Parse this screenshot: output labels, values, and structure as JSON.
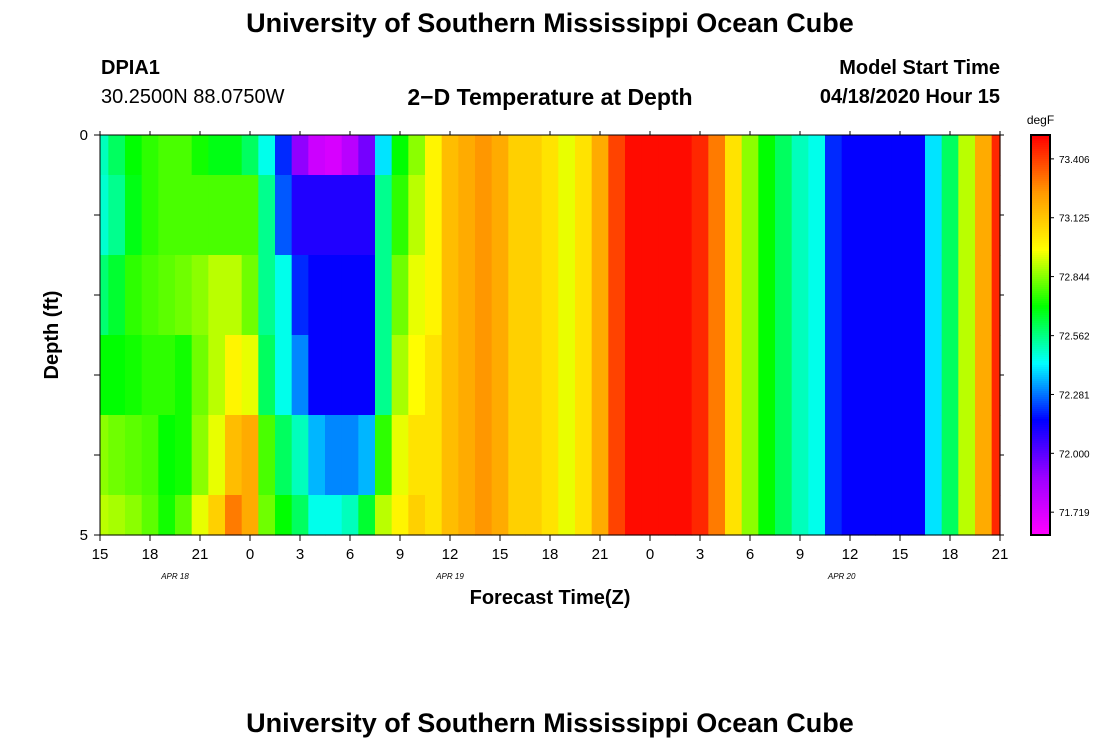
{
  "header": {
    "title": "University of Southern Mississippi Ocean Cube",
    "station": "DPIA1",
    "coords": "30.2500N 88.0750W",
    "subtitle": "2−D Temperature at Depth",
    "model_start_label": "Model Start Time",
    "model_start_value": "04/18/2020 Hour 15"
  },
  "footer": {
    "title": "University of Southern Mississippi Ocean Cube"
  },
  "colors": {
    "scale": [
      "#ff00ff",
      "#9b00ff",
      "#0000ff",
      "#00ffff",
      "#00ff00",
      "#ffff00",
      "#ff9900",
      "#ff0000"
    ],
    "background": "#ffffff"
  },
  "chart_data": {
    "type": "heatmap",
    "xlabel": "Forecast Time(Z)",
    "ylabel": "Depth (ft)",
    "x_hours_since_start": [
      0,
      1,
      2,
      3,
      4,
      5,
      6,
      7,
      8,
      9,
      10,
      11,
      12,
      13,
      14,
      15,
      16,
      17,
      18,
      19,
      20,
      21,
      22,
      23,
      24,
      25,
      26,
      27,
      28,
      29,
      30,
      31,
      32,
      33,
      34,
      35,
      36,
      37,
      38,
      39,
      40,
      41,
      42,
      43,
      44,
      45,
      46,
      47,
      48,
      49,
      50,
      51,
      52,
      53,
      54
    ],
    "x_tick_labels": [
      "15",
      "18",
      "21",
      "0",
      "3",
      "6",
      "9",
      "12",
      "15",
      "18",
      "21",
      "0",
      "3",
      "6",
      "9",
      "12",
      "15",
      "18",
      "21"
    ],
    "x_tick_hours": [
      0,
      3,
      6,
      9,
      12,
      15,
      18,
      21,
      24,
      27,
      30,
      33,
      36,
      39,
      42,
      45,
      48,
      51,
      54
    ],
    "date_labels": [
      {
        "label": "APR 18",
        "hour": 4.5
      },
      {
        "label": "APR 19",
        "hour": 21
      },
      {
        "label": "APR 20",
        "hour": 44.5
      }
    ],
    "y_depth_ft": [
      0,
      1,
      2,
      3,
      4,
      5
    ],
    "y_tick_labels": [
      "0",
      "5"
    ],
    "ylim": [
      0,
      5
    ],
    "colorbar": {
      "unit": "degF",
      "labels": [
        "73.406",
        "73.125",
        "72.844",
        "72.562",
        "72.281",
        "72.000",
        "71.719"
      ],
      "values": [
        73.406,
        73.125,
        72.844,
        72.562,
        72.281,
        72.0,
        71.719
      ],
      "min": 71.61,
      "max": 73.52
    },
    "rows": [
      {
        "depth_range": [
          0,
          0.5
        ],
        "values": [
          72.5,
          72.6,
          72.7,
          72.75,
          72.78,
          72.78,
          72.72,
          72.68,
          72.68,
          72.6,
          72.45,
          72.2,
          71.9,
          71.75,
          71.72,
          71.8,
          71.95,
          72.4,
          72.7,
          72.85,
          73.0,
          73.15,
          73.2,
          73.25,
          73.2,
          73.1,
          73.1,
          73.05,
          72.95,
          73.05,
          73.2,
          73.4,
          73.5,
          73.5,
          73.5,
          73.5,
          73.45,
          73.3,
          73.05,
          72.85,
          72.7,
          72.6,
          72.5,
          72.45,
          72.2,
          72.15,
          72.15,
          72.15,
          72.15,
          72.15,
          72.4,
          72.6,
          72.9,
          73.2,
          73.45
        ]
      },
      {
        "depth_range": [
          0.5,
          1.5
        ],
        "values": [
          72.48,
          72.55,
          72.68,
          72.75,
          72.78,
          72.78,
          72.78,
          72.78,
          72.78,
          72.78,
          72.55,
          72.25,
          72.1,
          72.1,
          72.1,
          72.1,
          72.1,
          72.55,
          72.75,
          72.9,
          73.0,
          73.15,
          73.2,
          73.25,
          73.2,
          73.1,
          73.1,
          73.05,
          72.95,
          73.05,
          73.2,
          73.4,
          73.5,
          73.5,
          73.5,
          73.5,
          73.45,
          73.3,
          73.05,
          72.85,
          72.7,
          72.6,
          72.5,
          72.45,
          72.2,
          72.15,
          72.15,
          72.15,
          72.15,
          72.15,
          72.4,
          72.6,
          72.9,
          73.2,
          73.45
        ]
      },
      {
        "depth_range": [
          1.5,
          2.5
        ],
        "values": [
          72.58,
          72.65,
          72.75,
          72.78,
          72.8,
          72.82,
          72.85,
          72.9,
          72.9,
          72.82,
          72.55,
          72.45,
          72.2,
          72.15,
          72.15,
          72.15,
          72.15,
          72.55,
          72.82,
          72.95,
          73.0,
          73.15,
          73.2,
          73.25,
          73.2,
          73.1,
          73.1,
          73.05,
          72.95,
          73.05,
          73.2,
          73.4,
          73.5,
          73.5,
          73.5,
          73.5,
          73.45,
          73.3,
          73.05,
          72.85,
          72.7,
          72.6,
          72.5,
          72.45,
          72.2,
          72.15,
          72.15,
          72.15,
          72.15,
          72.15,
          72.4,
          72.6,
          72.9,
          73.2,
          73.45
        ]
      },
      {
        "depth_range": [
          2.5,
          3.5
        ],
        "values": [
          72.7,
          72.7,
          72.72,
          72.75,
          72.75,
          72.72,
          72.82,
          72.9,
          73.0,
          72.95,
          72.6,
          72.45,
          72.3,
          72.15,
          72.15,
          72.15,
          72.15,
          72.55,
          72.88,
          72.98,
          73.05,
          73.15,
          73.2,
          73.25,
          73.2,
          73.1,
          73.1,
          73.05,
          72.95,
          73.05,
          73.2,
          73.4,
          73.5,
          73.5,
          73.5,
          73.5,
          73.45,
          73.3,
          73.05,
          72.85,
          72.7,
          72.6,
          72.5,
          72.45,
          72.2,
          72.15,
          72.15,
          72.15,
          72.15,
          72.15,
          72.4,
          72.6,
          72.9,
          73.2,
          73.45
        ]
      },
      {
        "depth_range": [
          3.5,
          4.5
        ],
        "values": [
          72.85,
          72.82,
          72.8,
          72.78,
          72.7,
          72.72,
          72.85,
          72.95,
          73.15,
          73.2,
          72.78,
          72.6,
          72.5,
          72.35,
          72.3,
          72.3,
          72.35,
          72.75,
          72.95,
          73.05,
          73.05,
          73.15,
          73.2,
          73.25,
          73.2,
          73.1,
          73.1,
          73.05,
          72.95,
          73.05,
          73.2,
          73.4,
          73.5,
          73.5,
          73.5,
          73.5,
          73.45,
          73.3,
          73.05,
          72.85,
          72.7,
          72.6,
          72.5,
          72.45,
          72.2,
          72.15,
          72.15,
          72.15,
          72.15,
          72.15,
          72.4,
          72.6,
          72.9,
          73.2,
          73.45
        ]
      },
      {
        "depth_range": [
          4.5,
          5
        ],
        "values": [
          72.9,
          72.88,
          72.85,
          72.8,
          72.72,
          72.8,
          72.95,
          73.1,
          73.3,
          73.2,
          72.82,
          72.7,
          72.6,
          72.45,
          72.45,
          72.5,
          72.65,
          72.9,
          73.0,
          73.1,
          73.05,
          73.15,
          73.2,
          73.25,
          73.2,
          73.1,
          73.1,
          73.05,
          72.95,
          73.05,
          73.2,
          73.4,
          73.5,
          73.5,
          73.5,
          73.5,
          73.45,
          73.3,
          73.05,
          72.85,
          72.7,
          72.6,
          72.5,
          72.45,
          72.2,
          72.15,
          72.15,
          72.15,
          72.15,
          72.15,
          72.4,
          72.6,
          72.9,
          73.2,
          73.45
        ]
      }
    ]
  }
}
